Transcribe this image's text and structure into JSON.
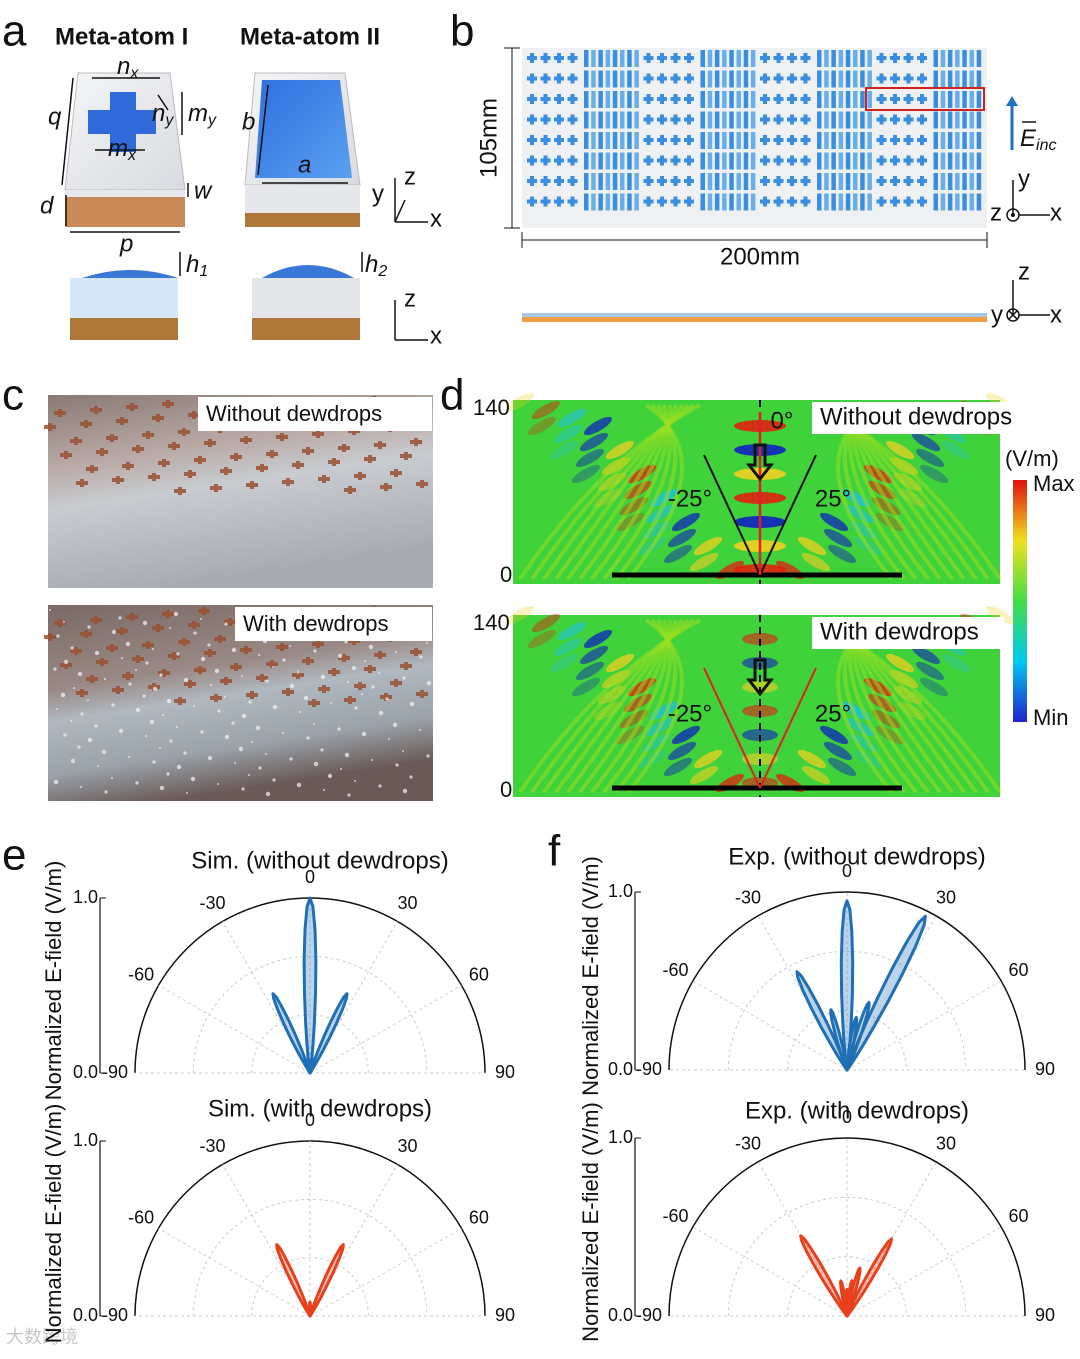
{
  "panel_a": {
    "letter": "a",
    "title_1": "Meta-atom I",
    "title_2": "Meta-atom II",
    "nx": {
      "main": "n",
      "sub": "x"
    },
    "my": {
      "main": "m",
      "sub": "y"
    },
    "ny": {
      "main": "n",
      "sub": "y"
    },
    "mx": {
      "main": "m",
      "sub": "x"
    },
    "q": "q",
    "d": "d",
    "w": "w",
    "p": "p",
    "b": "b",
    "a": "a",
    "h1": {
      "main": "h",
      "sub": "1"
    },
    "h2": {
      "main": "h",
      "sub": "2"
    },
    "axes_1": {
      "y": "y",
      "z": "z",
      "x": "x"
    },
    "axes_2": {
      "z": "z",
      "x": "x"
    }
  },
  "panel_b": {
    "letter": "b",
    "height": "105mm",
    "width": "200mm",
    "field": {
      "main": "E",
      "sub": "inc"
    },
    "axes_1": {
      "y": "y",
      "z": "z",
      "x": "x"
    },
    "axes_2": {
      "z": "z",
      "y": "y",
      "x": "x"
    }
  },
  "panel_c": {
    "letter": "c",
    "top_label": "Without dewdrops",
    "bottom_label": "With dewdrops"
  },
  "panel_d": {
    "letter": "d",
    "maps": [
      {
        "label": "Without dewdrops",
        "y_top": "140",
        "y_bottom": "0",
        "angle_center": "0°",
        "angle_left": "-25°",
        "angle_right": "25°"
      },
      {
        "label": "With dewdrops",
        "y_top": "140",
        "y_bottom": "0",
        "angle_left": "-25°",
        "angle_right": "25°"
      }
    ],
    "colorbar": {
      "unit": "(V/m)",
      "max": "Max",
      "min": "Min"
    }
  },
  "polar_plots": [
    {
      "letter": "e",
      "title": "Sim. (without dewdrops)",
      "ylabel": "Normalized E-field (V/m)",
      "rlim": [
        0,
        1
      ],
      "rticks": [
        {
          "value": 0,
          "label": "0.0"
        },
        {
          "value": 1,
          "label": "1.0"
        }
      ],
      "angle_ticks": [
        -90,
        -60,
        -30,
        0,
        30,
        60,
        90
      ],
      "color": "#1f6fb5",
      "angles": [
        -25,
        0,
        25
      ],
      "values": [
        0.5,
        1.0,
        0.5
      ]
    },
    {
      "title": "Sim. (with dewdrops)",
      "ylabel": "Normalized E-field (V/m)",
      "rlim": [
        0,
        1
      ],
      "rticks": [
        {
          "value": 0,
          "label": "0.0"
        },
        {
          "value": 1,
          "label": "1.0"
        }
      ],
      "angle_ticks": [
        -90,
        -60,
        -30,
        0,
        30,
        60,
        90
      ],
      "color": "#e8401c",
      "angles": [
        -25,
        0,
        25
      ],
      "values": [
        0.45,
        0.08,
        0.45
      ]
    },
    {
      "letter": "f",
      "title": "Exp. (without dewdrops)",
      "ylabel": "Normalized E-field (V/m)",
      "rlim": [
        0,
        1
      ],
      "rticks": [
        {
          "value": 0,
          "label": "0.0"
        },
        {
          "value": 1,
          "label": "1.0"
        }
      ],
      "angle_ticks": [
        -90,
        -60,
        -30,
        0,
        30,
        60,
        90
      ],
      "color": "#1f6fb5",
      "angles": [
        -27,
        -15,
        0,
        10,
        18,
        27
      ],
      "values": [
        0.62,
        0.35,
        0.95,
        0.3,
        0.4,
        0.97
      ]
    },
    {
      "title": "Exp. (with dewdrops)",
      "ylabel": "Normalized E-field (V/m)",
      "rlim": [
        0,
        1
      ],
      "rticks": [
        {
          "value": 0,
          "label": "0.0"
        },
        {
          "value": 1,
          "label": "1.0"
        }
      ],
      "angle_ticks": [
        -90,
        -60,
        -30,
        0,
        30,
        60,
        90
      ],
      "color": "#e8401c",
      "angles": [
        -30,
        -10,
        0,
        8,
        15,
        30
      ],
      "values": [
        0.52,
        0.2,
        0.15,
        0.2,
        0.28,
        0.5
      ]
    }
  ],
  "watermark": "大数跨境"
}
